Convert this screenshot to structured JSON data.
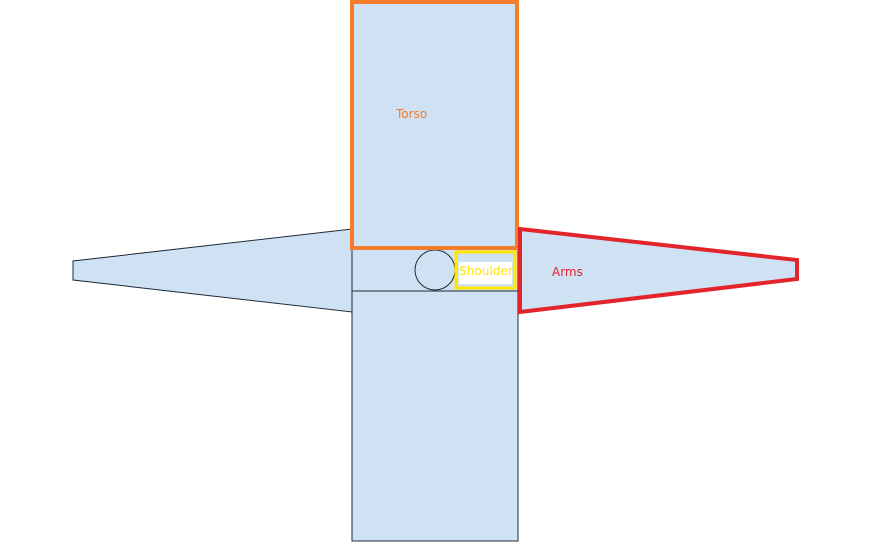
{
  "labels": {
    "torso": "Torso",
    "shoulder": "Shoulder",
    "arms": "Arms"
  },
  "colors": {
    "fill": "#cfe2f3",
    "outline": "#1f2a3a",
    "torso_highlight": "#f47c2a",
    "shoulder_highlight": "#ffe600",
    "arms_highlight": "#e3242b",
    "shoulder_label_bg": "#ffffff",
    "background": "#ffffff"
  }
}
